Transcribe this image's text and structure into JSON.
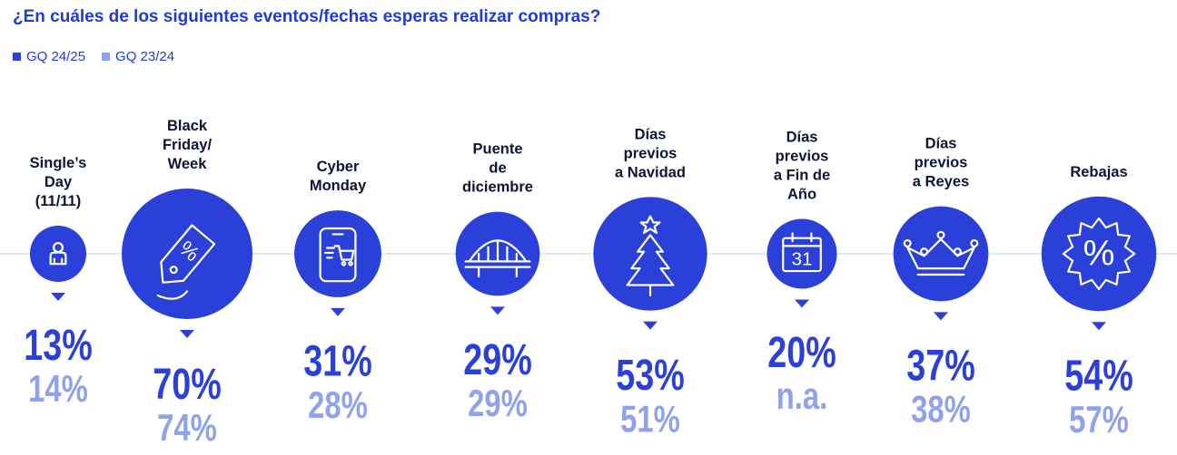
{
  "chart_data": {
    "type": "bubble",
    "title": "¿En cuáles de los siguientes eventos/fechas esperas realizar compras?",
    "series": [
      {
        "name": "GQ 24/25",
        "color": "#2b3fd9"
      },
      {
        "name": "GQ 23/24",
        "color": "#8fa2ec"
      }
    ],
    "categories": [
      {
        "label": "Single’s Day (11/11)",
        "lines": [
          "Single’s",
          "Day",
          "(11/11)"
        ],
        "icon": "person-icon",
        "current": "13%",
        "previous": "14%",
        "value": 13
      },
      {
        "label": "Black Friday/ Week",
        "lines": [
          "Black",
          "Friday/",
          "Week"
        ],
        "icon": "price-tag-icon",
        "current": "70%",
        "previous": "74%",
        "value": 70
      },
      {
        "label": "Cyber Monday",
        "lines": [
          "Cyber",
          "Monday"
        ],
        "icon": "mobile-cart-icon",
        "current": "31%",
        "previous": "28%",
        "value": 31
      },
      {
        "label": "Puente de diciembre",
        "lines": [
          "Puente",
          "de",
          "diciembre"
        ],
        "icon": "bridge-icon",
        "current": "29%",
        "previous": "29%",
        "value": 29
      },
      {
        "label": "Días previos a Navidad",
        "lines": [
          "Días",
          "previos",
          "a Navidad"
        ],
        "icon": "christmas-tree-icon",
        "current": "53%",
        "previous": "51%",
        "value": 53
      },
      {
        "label": "Días previos a Fin de Año",
        "lines": [
          "Días",
          "previos",
          "a Fin de",
          "Año"
        ],
        "icon": "calendar-icon",
        "current": "20%",
        "previous": "n.a.",
        "value": 20
      },
      {
        "label": "Días previos a Reyes",
        "lines": [
          "Días",
          "previos",
          "a Reyes"
        ],
        "icon": "crown-icon",
        "current": "37%",
        "previous": "38%",
        "value": 37
      },
      {
        "label": "Rebajas",
        "lines": [
          "Rebajas"
        ],
        "icon": "percent-badge-icon",
        "current": "54%",
        "previous": "57%",
        "value": 54
      }
    ],
    "calendar_day": "31"
  }
}
